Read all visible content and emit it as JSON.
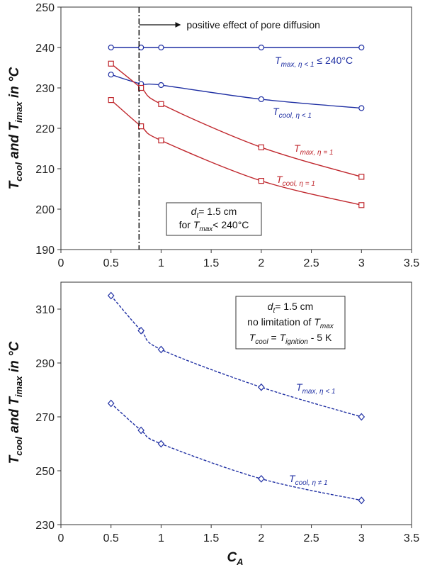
{
  "chart_data": [
    {
      "type": "line",
      "xlim": [
        0,
        3.5
      ],
      "ylim": [
        190,
        250
      ],
      "xticks": [
        "0",
        "0.5",
        "1",
        "1.5",
        "2",
        "2.5",
        "3",
        "3.5"
      ],
      "yticks": [
        "190",
        "200",
        "210",
        "220",
        "230",
        "240",
        "250"
      ],
      "ylabel": {
        "a": "T",
        "a_sub": "cool",
        "mid": " and ",
        "b": "T",
        "b_sub": "imax",
        "unit": " in °C"
      },
      "xlabel": "",
      "vline": {
        "x": 0.78,
        "label": "positive effect of pore diffusion"
      },
      "textbox": {
        "line1_var": "d",
        "line1_sub": "t",
        "line1_rest": "= 1.5 cm",
        "line2_pre": "for ",
        "line2_var": "T",
        "line2_sub": "max",
        "line2_rest": "< 240°C"
      },
      "series": [
        {
          "label_main": "T",
          "label_sub": "max, η < 1",
          "label_tail": " ≤ 240°C",
          "color": "#1f2fa3",
          "marker": "circle",
          "style": "solid",
          "x": [
            0.5,
            0.8,
            1,
            2,
            3
          ],
          "y": [
            240,
            240,
            240,
            240,
            240
          ]
        },
        {
          "label_main": "T",
          "label_sub": "cool, η < 1",
          "label_tail": "",
          "color": "#1f2fa3",
          "marker": "circle",
          "style": "solid",
          "x": [
            0.5,
            0.8,
            1,
            2,
            3
          ],
          "y": [
            233.3,
            231,
            230.7,
            227.2,
            225
          ]
        },
        {
          "label_main": "T",
          "label_sub": "max, η = 1",
          "label_tail": "",
          "color": "#c0272d",
          "marker": "square",
          "style": "solid",
          "x": [
            0.5,
            0.8,
            1,
            2,
            3
          ],
          "y": [
            236,
            230,
            226,
            215.3,
            208
          ]
        },
        {
          "label_main": "T",
          "label_sub": "cool, η = 1",
          "label_tail": "",
          "color": "#c0272d",
          "marker": "square",
          "style": "solid",
          "x": [
            0.5,
            0.8,
            1,
            2,
            3
          ],
          "y": [
            227,
            220.5,
            217,
            207,
            201
          ]
        }
      ]
    },
    {
      "type": "line",
      "xlim": [
        0,
        3.5
      ],
      "ylim": [
        230,
        320
      ],
      "xticks": [
        "0",
        "0.5",
        "1",
        "1.5",
        "2",
        "2.5",
        "3",
        "3.5"
      ],
      "yticks": [
        "230",
        "250",
        "270",
        "290",
        "310"
      ],
      "ylabel": {
        "a": "T",
        "a_sub": "cool",
        "mid": " and ",
        "b": "T",
        "b_sub": "imax",
        "unit": " in °C"
      },
      "xlabel": {
        "main": "C",
        "sub": "A"
      },
      "textbox": {
        "line1_var": "d",
        "line1_sub": "t",
        "line1_rest": "= 1.5 cm",
        "line2": "no limitation of ",
        "line2_var": "T",
        "line2_sub": "max",
        "line3_a": "T",
        "line3_a_sub": "cool",
        "line3_mid": " = ",
        "line3_b": "T",
        "line3_b_sub": "ignition",
        "line3_rest": " - 5 K"
      },
      "series": [
        {
          "label_main": "T",
          "label_sub": "max, η < 1",
          "label_tail": "",
          "color": "#1f2fa3",
          "marker": "diamond",
          "style": "dashed",
          "x": [
            0.5,
            0.8,
            1,
            2,
            3
          ],
          "y": [
            315,
            302,
            295,
            281,
            270
          ]
        },
        {
          "label_main": "T",
          "label_sub": "cool, η ≠ 1",
          "label_tail": "",
          "color": "#1f2fa3",
          "marker": "diamond",
          "style": "dashed",
          "x": [
            0.5,
            0.8,
            1,
            2,
            3
          ],
          "y": [
            275,
            265,
            260,
            247,
            239
          ]
        }
      ]
    }
  ]
}
